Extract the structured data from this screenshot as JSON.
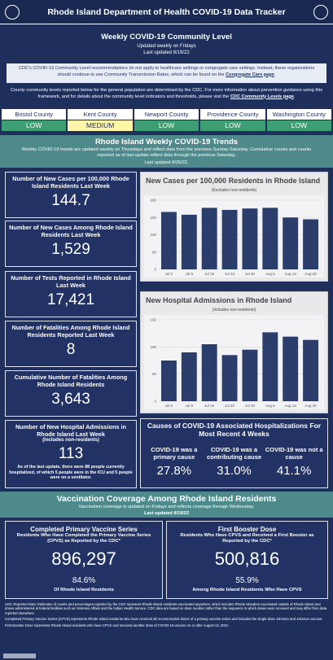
{
  "header": {
    "title": "Rhode Island Department of Health COVID-19 Data Tracker"
  },
  "community": {
    "title": "Weekly COVID-19 Community Level",
    "updated": "Updated weekly on Fridays",
    "last_updated": "Last updated 8/19/22",
    "notice_before": "CDC's COVID-19 Community Level recommendations do not apply to healthcare settings or congregate care settings. Instead, these organizations should continue to use Community Transmission Rates, which can be found on the ",
    "notice_link": "Congregate Care page",
    "notice_after": ".",
    "levels_before": "County community levels reported below for the general population are determined by the CDC. For more information about prevention guidance using this framework, and for details about the community level indicators and thresholds, please visit the ",
    "levels_link": "CDC Community Levels page",
    "levels_after": ".",
    "counties": [
      {
        "name": "Bristol County",
        "level": "LOW"
      },
      {
        "name": "Kent County",
        "level": "MEDIUM"
      },
      {
        "name": "Newport County",
        "level": "LOW"
      },
      {
        "name": "Providence County",
        "level": "LOW"
      },
      {
        "name": "Washington County",
        "level": "LOW"
      }
    ]
  },
  "trends": {
    "title": "Rhode Island Weekly COVID-19 Trends",
    "text": "Weekly COVID-19 trends are updated weekly on Thursdays and reflect data from the previous Sunday-Saturday. Cumulative counts and counts reported as of last update reflect data through the previous Saturday.",
    "last_updated": "Last updated 8/25/22."
  },
  "cards": [
    {
      "label": "Number of New Cases per 100,000 Rhode Island Residents Last Week",
      "value": "144.7"
    },
    {
      "label": "Number of New Cases Among Rhode Island Residents Last Week",
      "value": "1,529"
    },
    {
      "label": "Number of Tests Reported in Rhode Island Last Week",
      "value": "17,421"
    },
    {
      "label": "Number of Fatalities Among Rhode Island Residents Reported Last Week",
      "value": "8"
    },
    {
      "label": "Cumulative Number of Fatalities Among Rhode Island Residents",
      "value": "3,643"
    },
    {
      "label": "Number of New Hospital Admissions in Rhode Island Last Week",
      "sublabel": "(Includes non-residents)",
      "value": "113",
      "note": "As of the last update, there were 88 people currently hospitalized, of which 5 people were in the ICU and 5 people were on a ventilator."
    }
  ],
  "causes": {
    "title": "Causes of COVID-19 Associated Hospitalizations For Most Recent 4 Weeks",
    "items": [
      {
        "label": "COVID-19 was a primary cause",
        "value": "27.8%"
      },
      {
        "label": "COVID-19 was a contributing cause",
        "value": "31.0%"
      },
      {
        "label": "COVID-19 was not a cause",
        "value": "41.1%"
      }
    ]
  },
  "vaccination": {
    "title": "Vaccination Coverage Among Rhode Island Residents",
    "text": "Vaccination coverage is updated on Fridays and reflects coverage through Wednesday.",
    "last_updated": "Last updated 8/19/22",
    "cards": [
      {
        "title": "Completed Primary Vaccine Series",
        "subtitle": "Residents Who Have Completed the Primary Vaccine Series (CPVS) as Reported by the CDC*",
        "value": "896,297",
        "percent": "84.6%",
        "caption": "Of Rhode Island Residents"
      },
      {
        "title": "First Booster Dose",
        "subtitle": "Residents Who Have CPVS and Received a First Booster as Reported by the CDC*",
        "value": "500,816",
        "percent": "55.9%",
        "caption": "Among Rhode Island Residents Who Have CPVS"
      }
    ]
  },
  "footnotes": [
    "CDC-Reported Data: Estimates of counts and percentages reported by the CDC represent Rhode Island residents vaccinated anywhere, which includes Rhode Islanders vaccinated outside of Rhode Island and doses administered at federal facilities such as Veterans Affairs and the Indian Health Service. CDC data are based on dose number rather than the sequence in which doses were received and may differ from data reported elsewhere.",
    "Completed Primary Vaccine Series (CPVS) represents Rhode Island residents who have received all recommended doses of a primary vaccine series and includes the single-dose Johnson and Johnson vaccine.",
    "First Booster Dose represents Rhode Island residents who have CPVS and received another dose of COVID-19 vaccine on or after August 13, 2021."
  ],
  "chart_data": [
    {
      "type": "bar",
      "title": "New Cases per 100,000 Residents in Rhode Island",
      "subtitle": "(Excludes non-residents)",
      "categories": [
        "Jul 2",
        "Jul 9",
        "Jul 16",
        "Jul 23",
        "Jul 30",
        "Aug 6",
        "Aug 13",
        "Aug 20"
      ],
      "values": [
        166,
        158,
        178,
        172,
        176,
        178,
        150,
        144.7
      ],
      "color": "#2b3d6b",
      "ylim": [
        0,
        200
      ],
      "yticks": [
        0,
        50,
        100,
        150,
        200
      ],
      "grid": true
    },
    {
      "type": "bar",
      "title": "New Hospital Admissions in Rhode Island",
      "subtitle": "(Includes non-residents)",
      "categories": [
        "Jul 2",
        "Jul 9",
        "Jul 16",
        "Jul 23",
        "Jul 30",
        "Aug 6",
        "Aug 13",
        "Aug 20"
      ],
      "values": [
        75,
        90,
        105,
        85,
        95,
        127,
        119,
        113
      ],
      "color": "#2b3d6b",
      "ylim": [
        0,
        150
      ],
      "yticks": [
        0,
        50,
        100,
        150
      ],
      "grid": true
    }
  ]
}
